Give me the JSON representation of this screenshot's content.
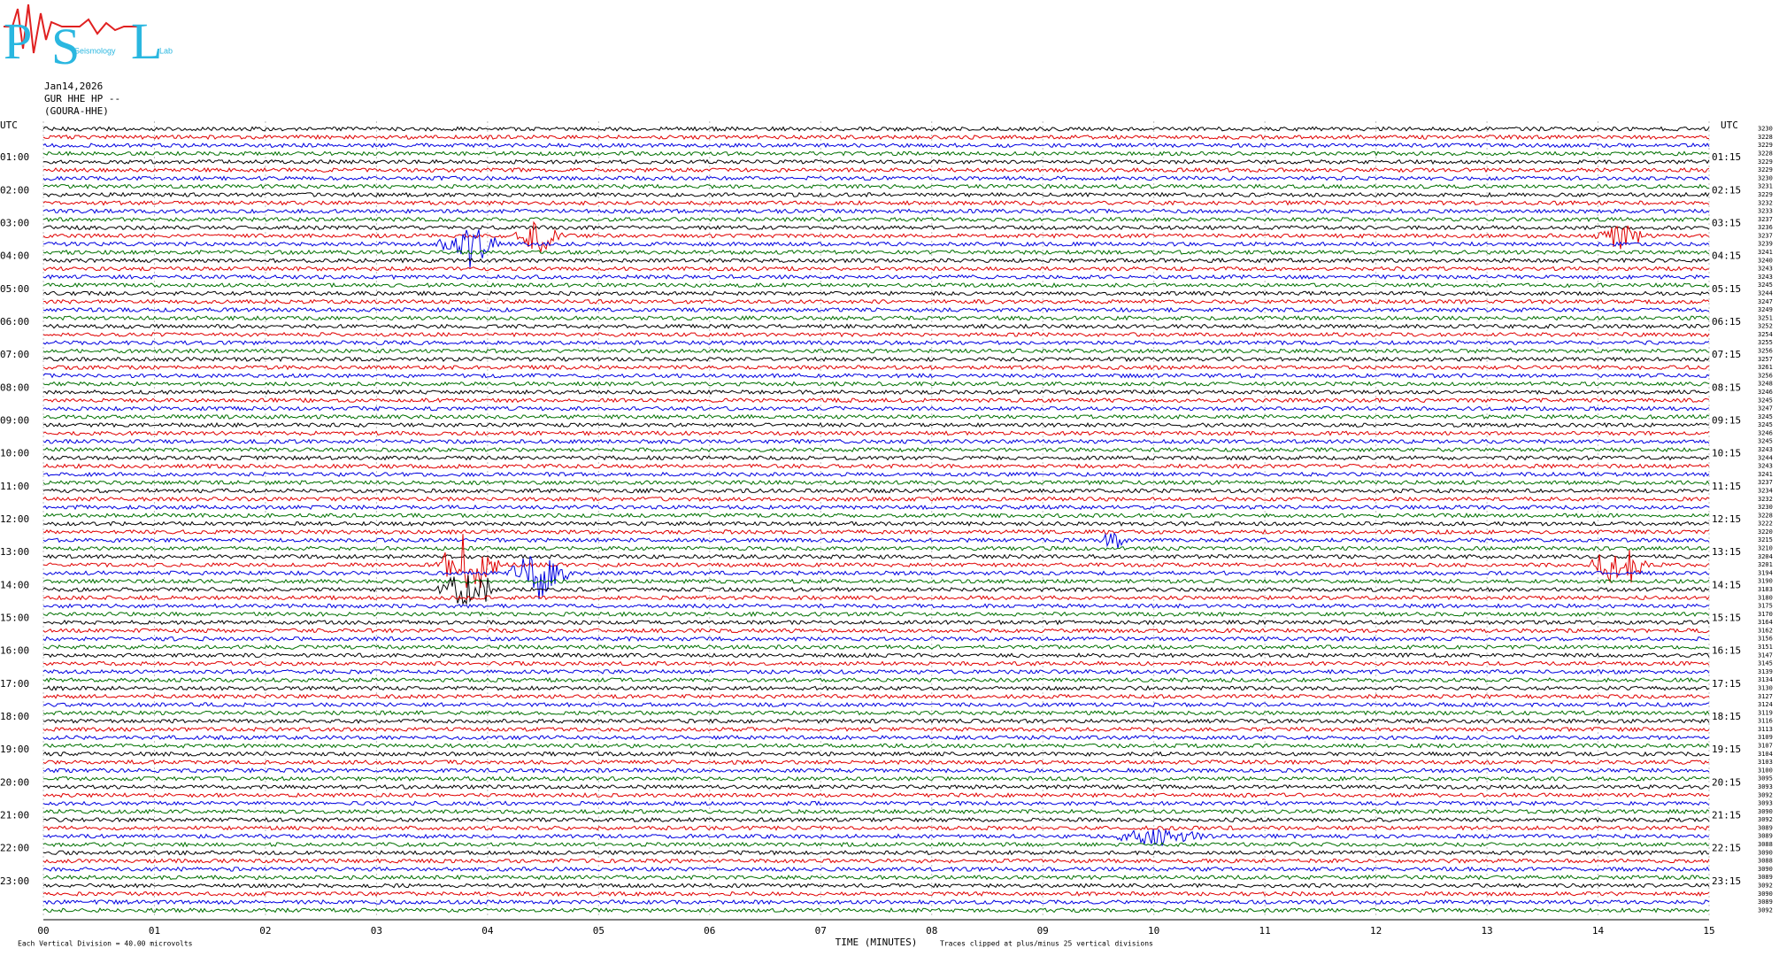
{
  "chart_data": {
    "type": "helicorder",
    "logo": {
      "letters": [
        "P",
        "S",
        "L"
      ],
      "words": [
        "Seismology",
        "Lab"
      ]
    },
    "date": "Jan14,2026",
    "station": "GUR HHE HP --",
    "channel": "(GOURA-HHE)",
    "x_label": "TIME (MINUTES)",
    "scale_note": "Each Vertical Division =   40.00 microvolts",
    "clip_note": "Traces clipped at plus/minus 25 vertical divisions",
    "left_header": "UTC",
    "right_header": "UTC",
    "left_labels": [
      "01:00",
      "02:00",
      "03:00",
      "04:00",
      "05:00",
      "06:00",
      "07:00",
      "08:00",
      "09:00",
      "10:00",
      "11:00",
      "12:00",
      "13:00",
      "14:00",
      "15:00",
      "16:00",
      "17:00",
      "18:00",
      "19:00",
      "20:00",
      "21:00",
      "22:00",
      "23:00"
    ],
    "right_labels": [
      "01:15",
      "02:15",
      "03:15",
      "04:15",
      "05:15",
      "06:15",
      "07:15",
      "08:15",
      "09:15",
      "10:15",
      "11:15",
      "12:15",
      "13:15",
      "14:15",
      "15:15",
      "16:15",
      "17:15",
      "18:15",
      "19:15",
      "20:15",
      "21:15",
      "22:15",
      "23:15"
    ],
    "trace_colors": [
      "#000000",
      "#e00000",
      "#0000e0",
      "#007000"
    ],
    "trace_means": [
      3230,
      3228,
      3229,
      3228,
      3229,
      3229,
      3230,
      3231,
      3229,
      3232,
      3233,
      3237,
      3236,
      3237,
      3239,
      3241,
      3240,
      3243,
      3243,
      3245,
      3244,
      3247,
      3249,
      3251,
      3252,
      3254,
      3255,
      3256,
      3257,
      3261,
      3256,
      3248,
      3246,
      3245,
      3247,
      3245,
      3245,
      3246,
      3245,
      3243,
      3244,
      3243,
      3241,
      3237,
      3234,
      3232,
      3230,
      3228,
      3222,
      3220,
      3215,
      3210,
      3204,
      3201,
      3194,
      3190,
      3183,
      3180,
      3175,
      3170,
      3164,
      3162,
      3156,
      3151,
      3147,
      3145,
      3139,
      3134,
      3130,
      3127,
      3124,
      3119,
      3116,
      3113,
      3109,
      3107,
      3104,
      3103,
      3100,
      3095,
      3093,
      3092,
      3093,
      3090,
      3092,
      3089,
      3089,
      3088,
      3090,
      3088,
      3090,
      3089,
      3092,
      3090,
      3089,
      3092
    ],
    "xlim": [
      0,
      15
    ],
    "xticks": [
      {
        "value": 0,
        "label": "00"
      },
      {
        "value": 1,
        "label": "01"
      },
      {
        "value": 2,
        "label": "02"
      },
      {
        "value": 3,
        "label": "03"
      },
      {
        "value": 4,
        "label": "04"
      },
      {
        "value": 5,
        "label": "05"
      },
      {
        "value": 6,
        "label": "06"
      },
      {
        "value": 7,
        "label": "07"
      },
      {
        "value": 8,
        "label": "08"
      },
      {
        "value": 9,
        "label": "09"
      },
      10,
      11,
      12,
      13,
      14,
      15
    ],
    "grid": true
  }
}
